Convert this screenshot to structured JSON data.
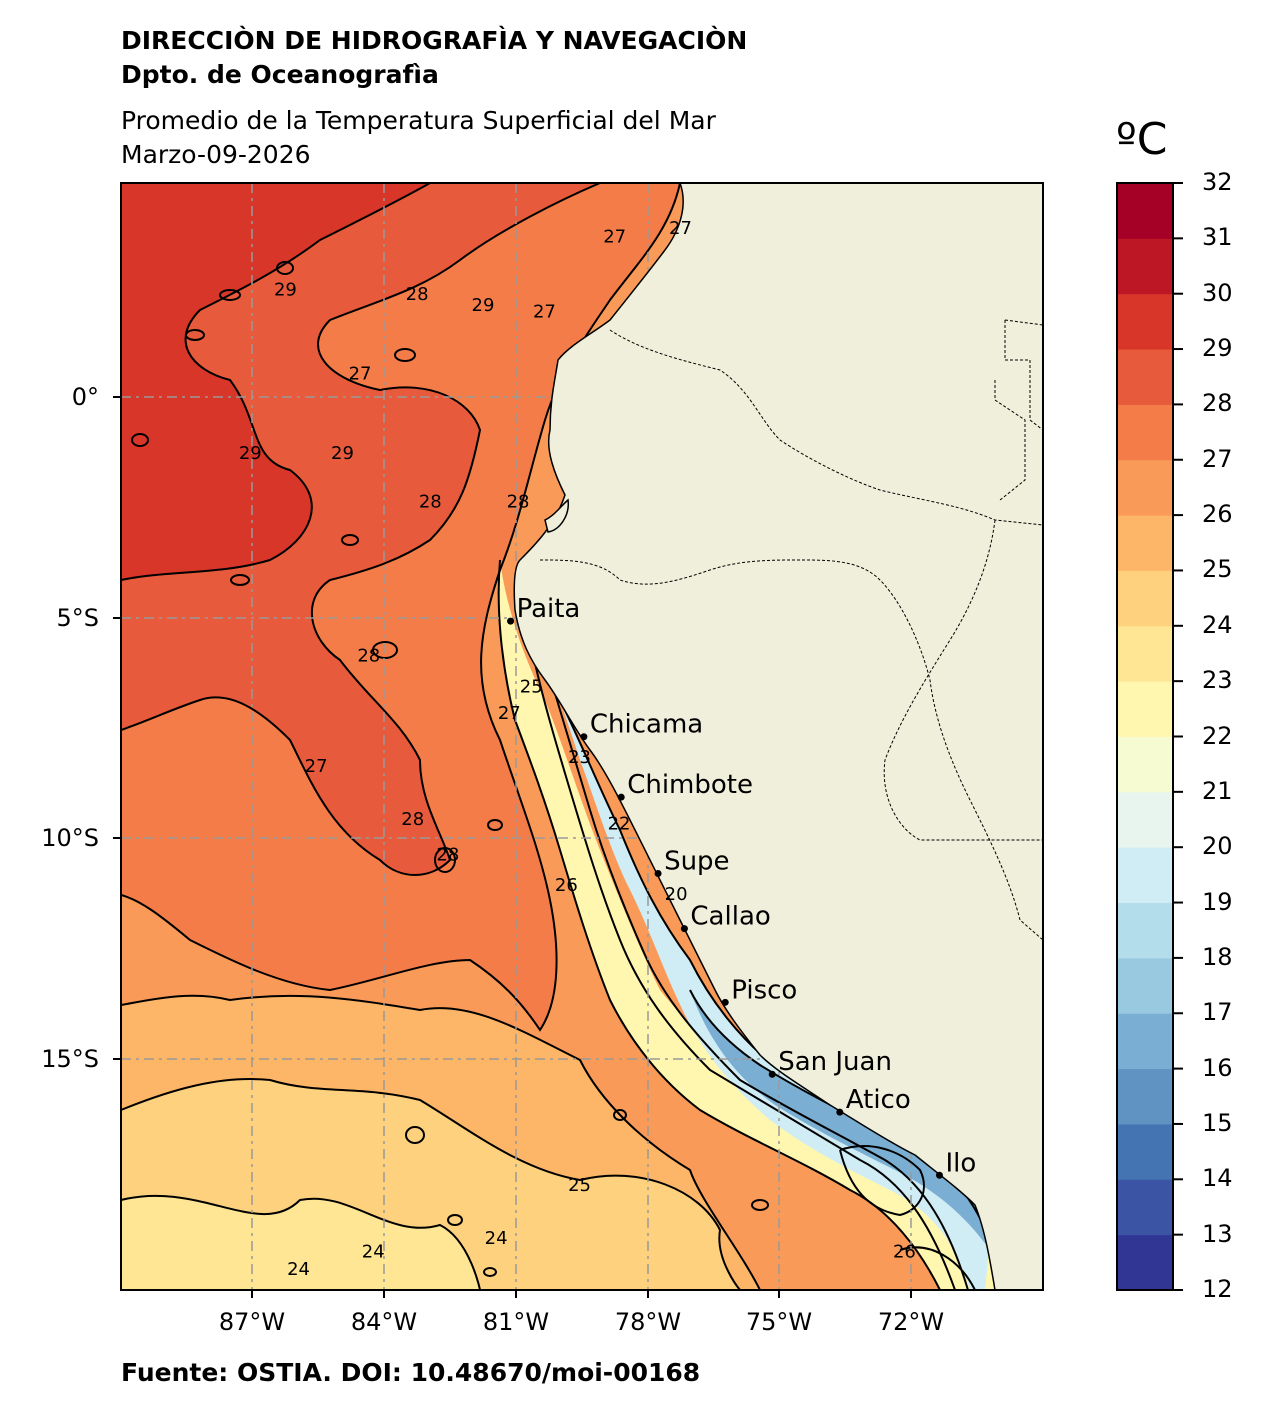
{
  "header": {
    "org": "DIRECCIÒN DE HIDROGRAFÌA Y NAVEGACIÒN",
    "dept": "Dpto. de Oceanografìa",
    "title": "Promedio de la Temperatura Superficial del Mar",
    "date": "Marzo-09-2026"
  },
  "footer": {
    "source": "Fuente: OSTIA. DOI: 10.48670/moi-00168"
  },
  "colorbar": {
    "unit": "ºC",
    "min": 12,
    "max": 32,
    "ticks": [
      "32",
      "31",
      "30",
      "29",
      "28",
      "27",
      "26",
      "25",
      "24",
      "23",
      "22",
      "21",
      "20",
      "19",
      "18",
      "17",
      "16",
      "15",
      "14",
      "13",
      "12"
    ],
    "colors": [
      "#313695",
      "#3b54a4",
      "#4574b3",
      "#6092c2",
      "#7aaed2",
      "#98c9e0",
      "#b4ddec",
      "#d0ecf4",
      "#e7f5ee",
      "#f7fbd1",
      "#fff6b0",
      "#fee695",
      "#fdd17e",
      "#fdb668",
      "#fa9a58",
      "#f47c49",
      "#e75a3b",
      "#d9362a",
      "#bd1726",
      "#a50026"
    ]
  },
  "axes": {
    "lat_labels": [
      "0°",
      "5°S",
      "10°S",
      "15°S"
    ],
    "lon_labels": [
      "87°W",
      "84°W",
      "81°W",
      "78°W",
      "75°W",
      "72°W"
    ]
  },
  "map": {
    "land_color": "#efefdc",
    "cities": [
      {
        "name": "Paita",
        "lat": -5.08,
        "lon": -81.11
      },
      {
        "name": "Chicama",
        "lat": -7.7,
        "lon": -79.44
      },
      {
        "name": "Chimbote",
        "lat": -9.07,
        "lon": -78.59
      },
      {
        "name": "Supe",
        "lat": -10.8,
        "lon": -77.75
      },
      {
        "name": "Callao",
        "lat": -12.05,
        "lon": -77.15
      },
      {
        "name": "Pisco",
        "lat": -13.72,
        "lon": -76.22
      },
      {
        "name": "San Juan",
        "lat": -15.35,
        "lon": -75.15
      },
      {
        "name": "Atico",
        "lat": -16.21,
        "lon": -73.61
      },
      {
        "name": "Ilo",
        "lat": -17.64,
        "lon": -71.34
      }
    ],
    "contour_labels": [
      {
        "text": "29",
        "lat": 1.95,
        "lon": -82.0
      },
      {
        "text": "27",
        "lat": 3.5,
        "lon": -79.0
      },
      {
        "text": "27",
        "lat": 3.7,
        "lon": -77.5
      },
      {
        "text": "29",
        "lat": 2.3,
        "lon": -86.5
      },
      {
        "text": "28",
        "lat": 2.2,
        "lon": -83.5
      },
      {
        "text": "27",
        "lat": 1.8,
        "lon": -80.6
      },
      {
        "text": "27",
        "lat": 0.4,
        "lon": -84.8
      },
      {
        "text": "29",
        "lat": -1.4,
        "lon": -87.3
      },
      {
        "text": "29",
        "lat": -1.4,
        "lon": -85.2
      },
      {
        "text": "28",
        "lat": -2.5,
        "lon": -83.2
      },
      {
        "text": "28",
        "lat": -2.5,
        "lon": -81.2
      },
      {
        "text": "28",
        "lat": -6.0,
        "lon": -84.6
      },
      {
        "text": "25",
        "lat": -6.7,
        "lon": -80.9
      },
      {
        "text": "27",
        "lat": -7.3,
        "lon": -81.4
      },
      {
        "text": "27",
        "lat": -8.5,
        "lon": -85.8
      },
      {
        "text": "23",
        "lat": -8.3,
        "lon": -79.8
      },
      {
        "text": "28",
        "lat": -9.7,
        "lon": -83.6
      },
      {
        "text": "28",
        "lat": -10.5,
        "lon": -82.8
      },
      {
        "text": "22",
        "lat": -9.8,
        "lon": -78.9
      },
      {
        "text": "26",
        "lat": -11.2,
        "lon": -80.1
      },
      {
        "text": "20",
        "lat": -11.4,
        "lon": -77.6
      },
      {
        "text": "25",
        "lat": -18.0,
        "lon": -79.8
      },
      {
        "text": "24",
        "lat": -19.2,
        "lon": -81.7
      },
      {
        "text": "24",
        "lat": -19.5,
        "lon": -84.5
      },
      {
        "text": "24",
        "lat": -19.9,
        "lon": -86.2
      },
      {
        "text": "26",
        "lat": -19.5,
        "lon": -72.4
      }
    ]
  }
}
